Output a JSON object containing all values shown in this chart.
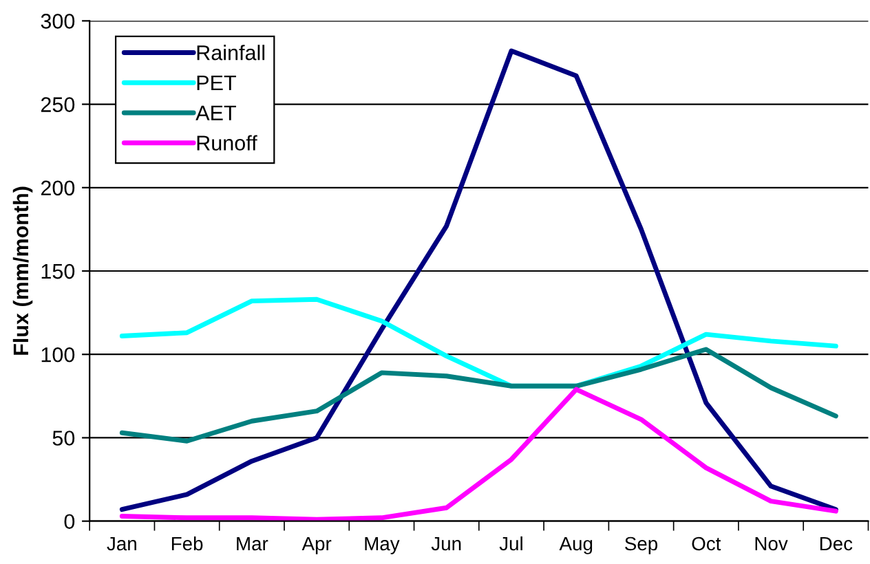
{
  "chart_data": {
    "type": "line",
    "ylabel": "Flux (mm/month)",
    "categories": [
      "Jan",
      "Feb",
      "Mar",
      "Apr",
      "May",
      "Jun",
      "Jul",
      "Aug",
      "Sep",
      "Oct",
      "Nov",
      "Dec"
    ],
    "series": [
      {
        "name": "Rainfall",
        "color": "#000080",
        "values": [
          7,
          16,
          36,
          50,
          115,
          177,
          282,
          267,
          175,
          71,
          21,
          7
        ]
      },
      {
        "name": "PET",
        "color": "#00ffff",
        "values": [
          111,
          113,
          132,
          133,
          120,
          99,
          81,
          81,
          93,
          112,
          108,
          105
        ]
      },
      {
        "name": "AET",
        "color": "#008080",
        "values": [
          53,
          48,
          60,
          66,
          89,
          87,
          81,
          81,
          91,
          103,
          80,
          63
        ]
      },
      {
        "name": "Runoff",
        "color": "#ff00ff",
        "values": [
          3,
          2,
          2,
          1,
          2,
          8,
          37,
          79,
          61,
          32,
          12,
          6
        ]
      }
    ],
    "ylim": [
      0,
      300
    ],
    "yticks": [
      0,
      50,
      100,
      150,
      200,
      250,
      300
    ],
    "grid": "y",
    "legend": "top left",
    "marker": "none",
    "line_style": "solid"
  }
}
